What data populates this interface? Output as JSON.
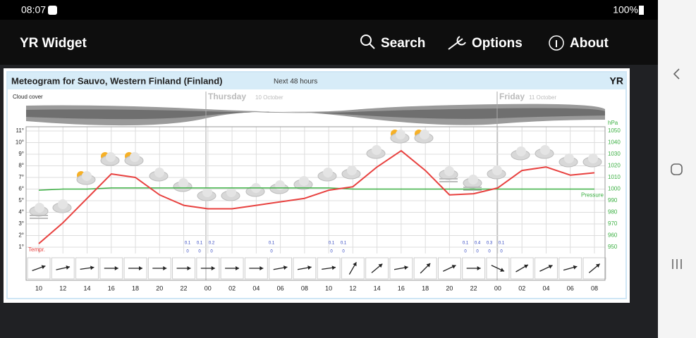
{
  "status_bar": {
    "time": "08:07",
    "battery": "100%"
  },
  "app_bar": {
    "title": "YR Widget",
    "actions": [
      "Search",
      "Options",
      "About"
    ]
  },
  "meteogram": {
    "title": "Meteogram for Sauvo, Western Finland (Finland)",
    "subtitle": "Next 48 hours",
    "logo": "YR",
    "cloud_label": "Cloud cover",
    "days": [
      {
        "name": "Thursday",
        "date": "10 October"
      },
      {
        "name": "Friday",
        "date": "11 October"
      }
    ],
    "hours": [
      "10",
      "12",
      "14",
      "16",
      "18",
      "20",
      "22",
      "00",
      "02",
      "04",
      "06",
      "08",
      "10",
      "12",
      "14",
      "16",
      "18",
      "20",
      "22",
      "00",
      "02",
      "04",
      "06",
      "08"
    ],
    "ylim": [
      1,
      11
    ],
    "yticks": [
      {
        "value": 1,
        "label": "1°"
      },
      {
        "value": 2,
        "label": "2°"
      },
      {
        "value": 3,
        "label": "3°"
      },
      {
        "value": 4,
        "label": "4°"
      },
      {
        "value": 5,
        "label": "5°"
      },
      {
        "value": 6,
        "label": "6°"
      },
      {
        "value": 7,
        "label": "7°"
      },
      {
        "value": 8,
        "label": "8°"
      },
      {
        "value": 9,
        "label": "9°"
      },
      {
        "value": 10,
        "label": "10°"
      },
      {
        "value": 11,
        "label": "11°"
      }
    ],
    "y2label": "hPa",
    "y2lim": [
      950,
      1050
    ],
    "y2ticks": [
      950,
      960,
      970,
      980,
      990,
      1000,
      1010,
      1020,
      1030,
      1040,
      1050
    ],
    "grid": true,
    "temperature": {
      "name": "Tempr.",
      "color": "#e8413f",
      "values": [
        1.3,
        3.1,
        5.2,
        7.3,
        7.0,
        5.5,
        4.6,
        4.3,
        4.3,
        4.6,
        4.9,
        5.2,
        5.9,
        6.2,
        7.9,
        9.3,
        7.6,
        5.5,
        5.6,
        6.1,
        7.6,
        7.9,
        7.2,
        7.4
      ]
    },
    "pressure": {
      "name": "Pressure",
      "color": "#3cb043",
      "values": [
        999,
        1000,
        1000,
        1001,
        1001,
        1001,
        1001,
        1001,
        1001,
        1001,
        1001,
        1001,
        1001,
        1000,
        1000,
        1000,
        1000,
        1000,
        1000,
        1000,
        1000,
        1000,
        1000,
        1000
      ]
    },
    "precipitation": [
      {
        "max": 0.1,
        "min": 0
      },
      {
        "max": 0.1,
        "min": 0
      },
      {
        "max": 0.2,
        "min": 0
      },
      {
        "max": 0.1,
        "min": 0
      },
      {
        "max": 0.1,
        "min": 0
      },
      {
        "max": 0.1,
        "min": 0
      },
      {
        "max": 0.1,
        "min": 0
      },
      {
        "max": 0.4,
        "min": 0
      },
      {
        "max": 0.3,
        "min": 0
      },
      {
        "max": 0.1,
        "min": 0
      }
    ]
  }
}
